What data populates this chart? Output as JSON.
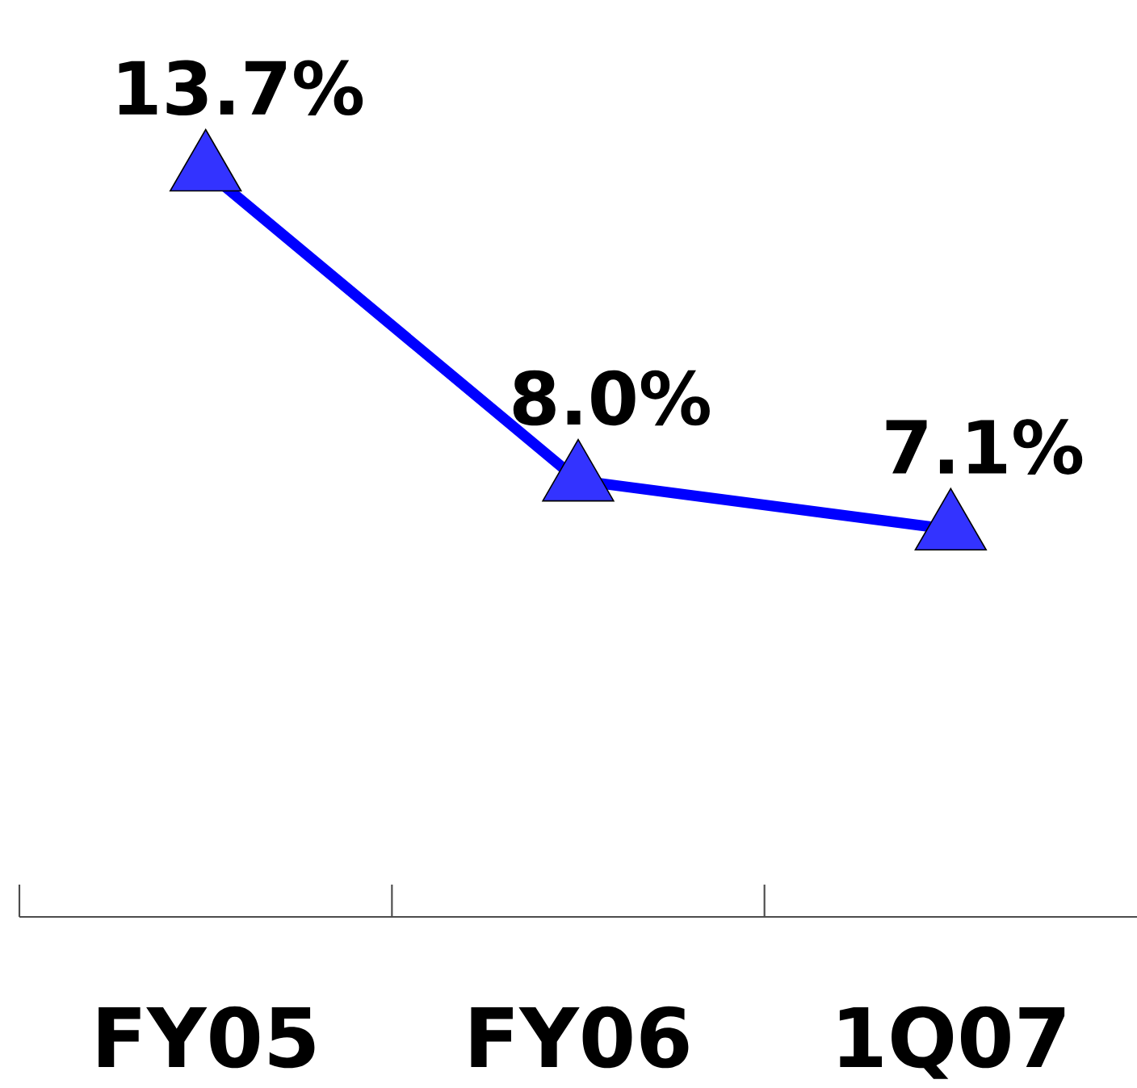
{
  "chart_data": {
    "type": "line",
    "marker": "triangle",
    "categories": [
      "FY05",
      "FY06",
      "1Q07"
    ],
    "series": [
      {
        "color": "#0000ff",
        "values": [
          13.7,
          8.0,
          7.1
        ],
        "value_labels": [
          "13.7%",
          "8.0%",
          "7.1%"
        ]
      }
    ],
    "tick_labels": "x",
    "grid": false
  }
}
